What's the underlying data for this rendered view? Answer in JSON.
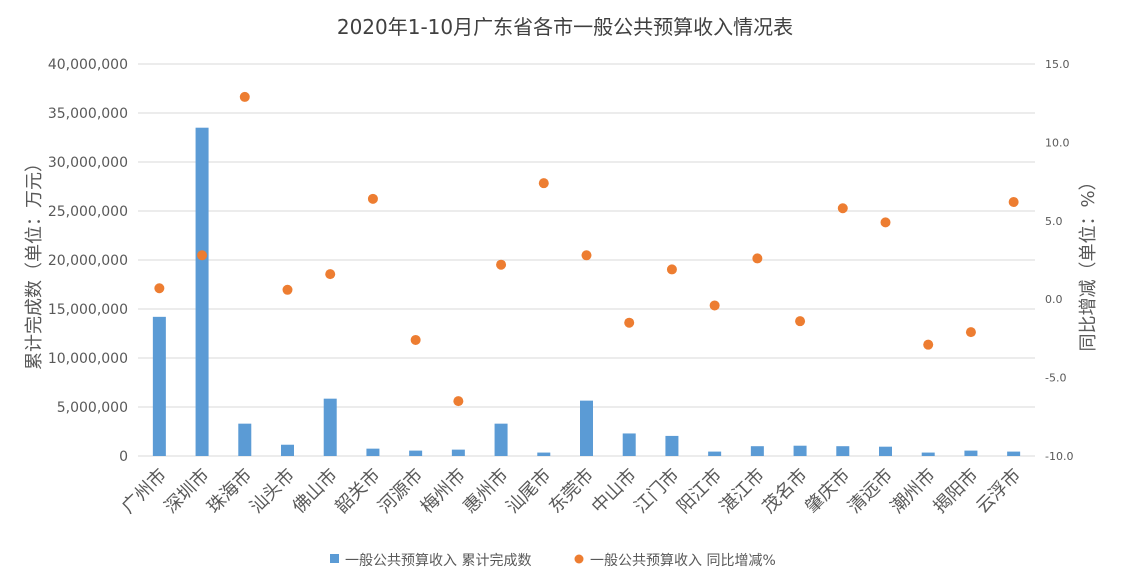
{
  "chart_data": {
    "type": "bar",
    "title": "2020年1-10月广东省各市一般公共预算收入情况表",
    "ylabel": "累计完成数（单位：万元）",
    "y2label": "同比增减（单位：%）",
    "ylim": [
      0,
      40000000
    ],
    "y2lim": [
      -10,
      15
    ],
    "yticks": [
      "0",
      "5,000,000",
      "10,000,000",
      "15,000,000",
      "20,000,000",
      "25,000,000",
      "30,000,000",
      "35,000,000",
      "40,000,000"
    ],
    "y2ticks": [
      "-10.0",
      "-5.0",
      "0.0",
      "5.0",
      "10.0",
      "15.0"
    ],
    "grid": true,
    "legend_position": "bottom",
    "categories": [
      "广州市",
      "深圳市",
      "珠海市",
      "汕头市",
      "佛山市",
      "韶关市",
      "河源市",
      "梅州市",
      "惠州市",
      "汕尾市",
      "东莞市",
      "中山市",
      "江门市",
      "阳江市",
      "湛江市",
      "茂名市",
      "肇庆市",
      "清远市",
      "潮州市",
      "揭阳市",
      "云浮市"
    ],
    "series": [
      {
        "name": "一般公共预算收入 累计完成数",
        "type": "bar",
        "axis": "left",
        "color": "#5b9bd5",
        "values": [
          14200000,
          33500000,
          3300000,
          1150000,
          5850000,
          750000,
          550000,
          650000,
          3300000,
          350000,
          5650000,
          2300000,
          2050000,
          450000,
          1000000,
          1050000,
          1000000,
          950000,
          350000,
          550000,
          450000
        ]
      },
      {
        "name": "一般公共预算收入 同比增减%",
        "type": "scatter",
        "axis": "right",
        "color": "#ed7d31",
        "values": [
          0.7,
          2.8,
          12.9,
          0.6,
          1.6,
          6.4,
          -2.6,
          -6.5,
          2.2,
          7.4,
          2.8,
          -1.5,
          1.9,
          -0.4,
          2.6,
          -1.4,
          5.8,
          4.9,
          -2.9,
          -2.1,
          6.2
        ]
      }
    ]
  }
}
